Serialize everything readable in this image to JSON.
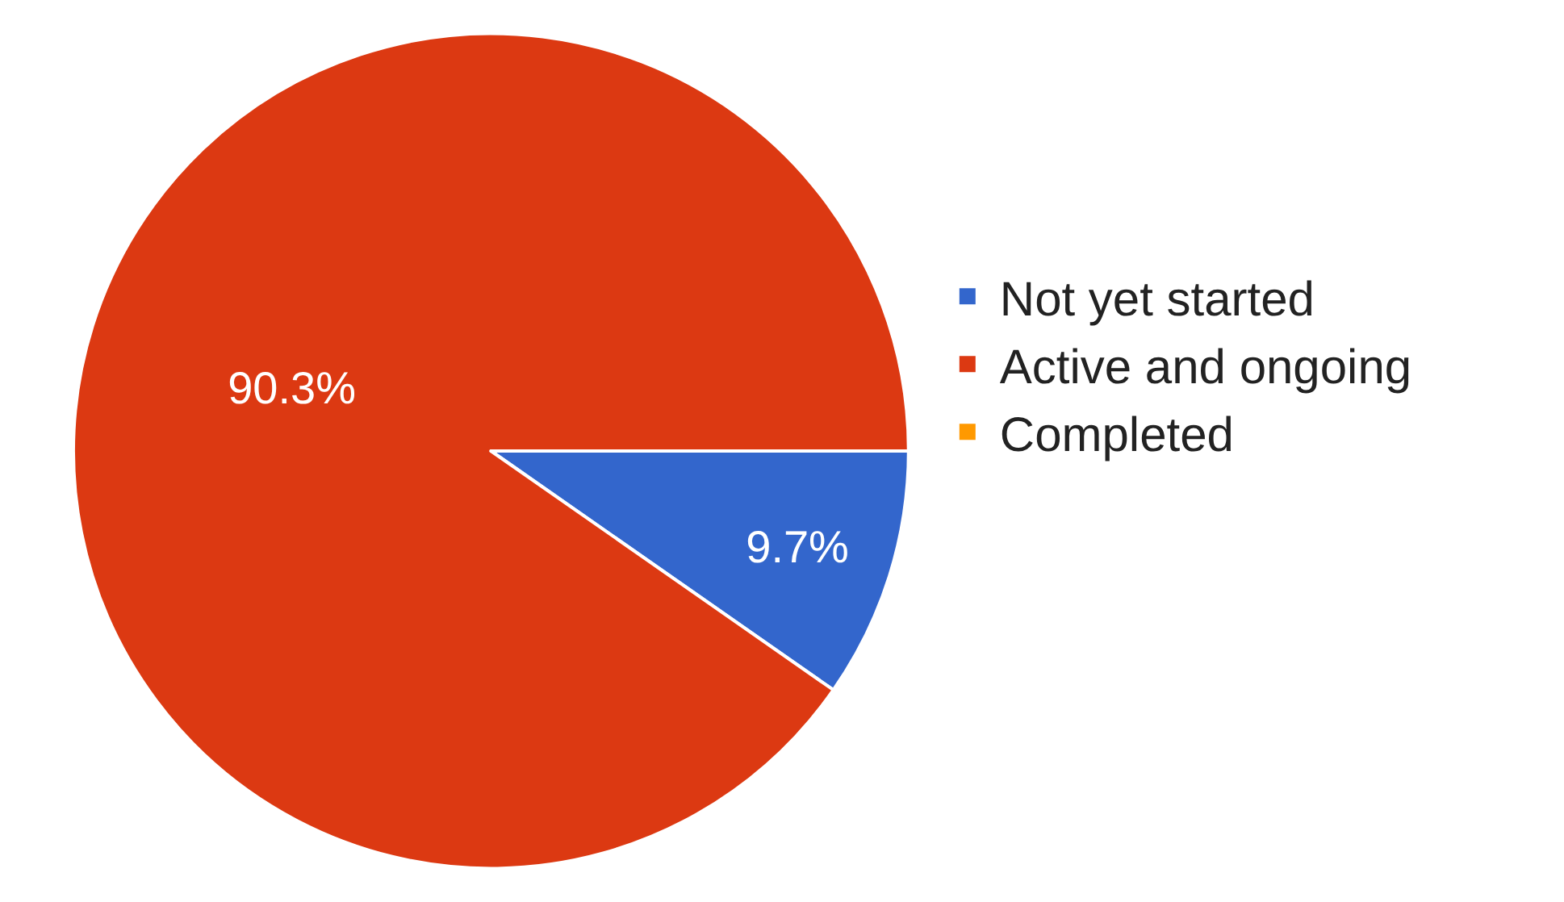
{
  "chart_data": {
    "type": "pie",
    "categories": [
      "Not yet started",
      "Active and ongoing",
      "Completed"
    ],
    "values": [
      9.7,
      90.3,
      0
    ],
    "colors": [
      "#3366cc",
      "#dc3912",
      "#ff9900"
    ],
    "value_labels": [
      "9.7%",
      "90.3%",
      null
    ],
    "legend": "right"
  }
}
